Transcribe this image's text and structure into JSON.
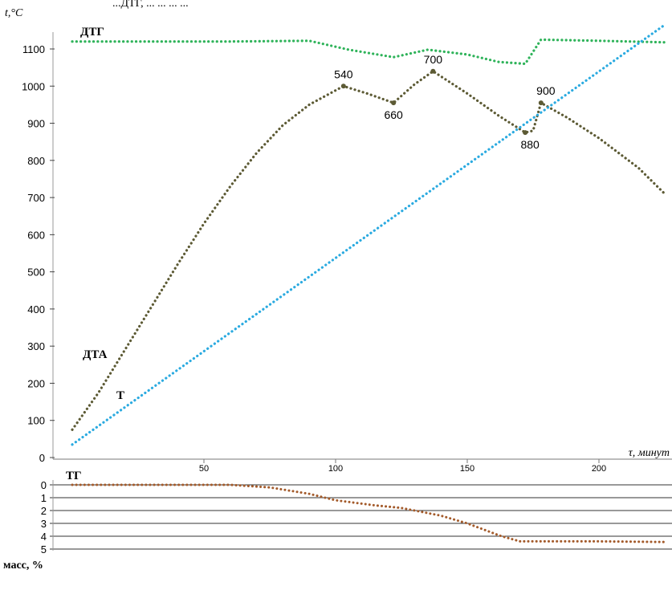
{
  "header_fragment": "...ДТГ, ... ... ... ...",
  "chart_data": [
    {
      "type": "line",
      "ylabel": "t,°C",
      "xlabel": "τ, минут",
      "ylim": [
        0,
        1100
      ],
      "xlim": [
        0,
        225
      ],
      "yticks": [
        0,
        100,
        200,
        300,
        400,
        500,
        600,
        700,
        800,
        900,
        1000,
        1100
      ],
      "xticks": [
        50,
        100,
        150,
        200
      ],
      "series": [
        {
          "name": "ДТГ",
          "color": "#2fb35a",
          "x": [
            0,
            30,
            60,
            90,
            105,
            122,
            135,
            150,
            162,
            172,
            178,
            200,
            225
          ],
          "y": [
            1120,
            1120,
            1120,
            1122,
            1098,
            1078,
            1098,
            1085,
            1065,
            1060,
            1125,
            1122,
            1118
          ]
        },
        {
          "name": "ДТА",
          "color": "#5c5a34",
          "x": [
            0,
            10,
            20,
            30,
            40,
            50,
            60,
            70,
            80,
            90,
            103,
            112,
            122,
            130,
            137,
            150,
            162,
            172,
            175,
            178,
            188,
            200,
            215,
            225
          ],
          "y": [
            75,
            175,
            290,
            405,
            520,
            630,
            730,
            820,
            895,
            950,
            1000,
            980,
            955,
            1005,
            1040,
            980,
            920,
            875,
            880,
            955,
            915,
            860,
            780,
            710
          ]
        },
        {
          "name": "T",
          "color": "#2aaae0",
          "x": [
            0,
            225
          ],
          "y": [
            35,
            1165
          ]
        }
      ],
      "annotations": [
        {
          "label": "540",
          "x": 103,
          "y": 1000
        },
        {
          "label": "660",
          "x": 122,
          "y": 955
        },
        {
          "label": "700",
          "x": 137,
          "y": 1040
        },
        {
          "label": "880",
          "x": 172,
          "y": 875
        },
        {
          "label": "900",
          "x": 178,
          "y": 955
        }
      ]
    },
    {
      "type": "line",
      "ylabel": "масс, %",
      "ylim": [
        0,
        5
      ],
      "yaxis_inverted": true,
      "yticks": [
        0,
        1,
        2,
        3,
        4,
        5
      ],
      "xlim": [
        0,
        225
      ],
      "series": [
        {
          "name": "ТГ",
          "color": "#a35a2a",
          "x": [
            0,
            30,
            60,
            75,
            90,
            100,
            115,
            125,
            140,
            150,
            163,
            170,
            185,
            200,
            225
          ],
          "y": [
            0,
            0,
            0,
            0.2,
            0.7,
            1.2,
            1.6,
            1.8,
            2.4,
            3.0,
            4.0,
            4.4,
            4.4,
            4.4,
            4.45
          ]
        }
      ]
    }
  ]
}
